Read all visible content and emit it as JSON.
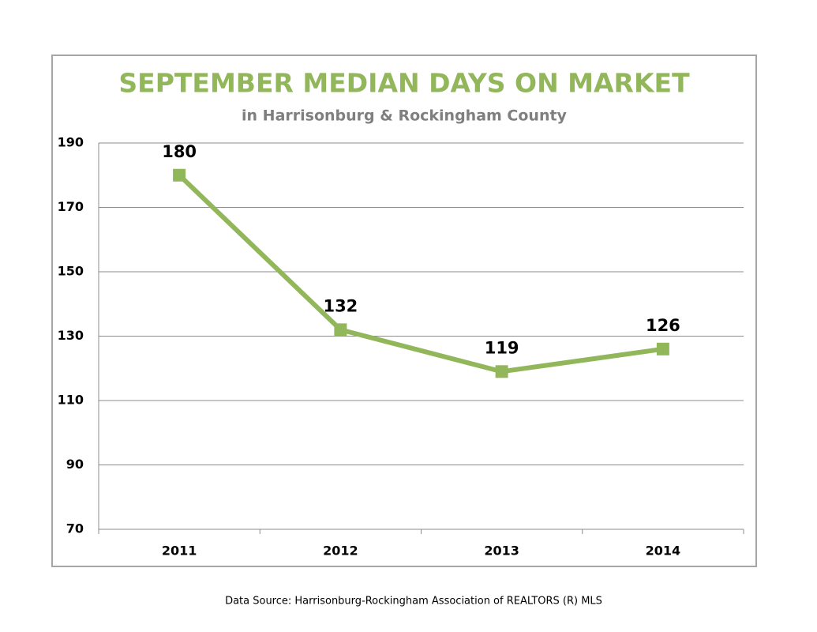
{
  "chart_data": {
    "type": "line",
    "title": "SEPTEMBER MEDIAN DAYS ON MARKET",
    "subtitle": "in Harrisonburg  & Rockingham County",
    "categories": [
      "2011",
      "2012",
      "2013",
      "2014"
    ],
    "values": [
      180,
      132,
      119,
      126
    ],
    "color": "#92b65a",
    "ylim": [
      70,
      190
    ],
    "yticks": [
      70,
      90,
      110,
      130,
      150,
      170,
      190
    ],
    "grid": true,
    "source": "Data Source: Harrisonburg-Rockingham Association of REALTORS (R) MLS"
  }
}
